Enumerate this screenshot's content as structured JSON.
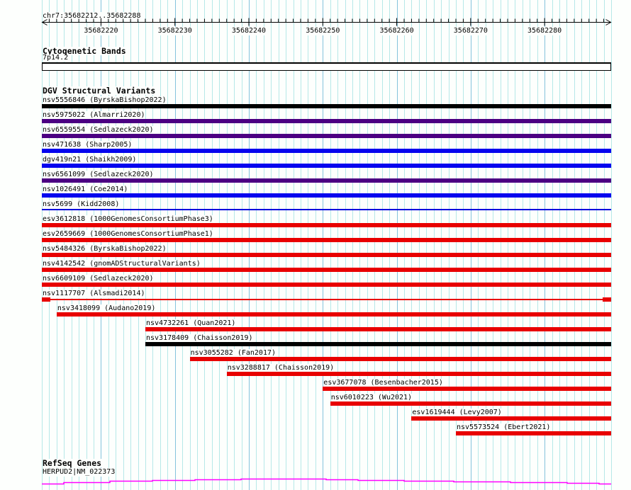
{
  "header": {
    "region": "chr7:35682212..35682288"
  },
  "view": {
    "chrom": "chr7",
    "start": 35682212,
    "end": 35682288
  },
  "ruler": {
    "tick_labels": [
      "35682220",
      "35682230",
      "35682240",
      "35682250",
      "35682260",
      "35682270",
      "35682280"
    ]
  },
  "cytobands": {
    "section_title": "Cytogenetic Bands",
    "band_label": "7p14.2",
    "band_fill": "#FFFFFF"
  },
  "dgv": {
    "section_title": "DGV Structural Variants",
    "variants": [
      {
        "label": "nsv5556846 (ByrskaBishop2022)",
        "color": "#000000",
        "start": 35682212,
        "shape": "bar"
      },
      {
        "label": "nsv5975022 (Almarri2020)",
        "color": "#4B0082",
        "start": 35682212,
        "shape": "bar"
      },
      {
        "label": "nsv6559554 (Sedlazeck2020)",
        "color": "#4B0082",
        "start": 35682212,
        "shape": "bar"
      },
      {
        "label": "nsv471638 (Sharp2005)",
        "color": "#0505EE",
        "start": 35682212,
        "shape": "bar"
      },
      {
        "label": "dgv419n21 (Shaikh2009)",
        "color": "#0505EE",
        "start": 35682212,
        "shape": "bar"
      },
      {
        "label": "nsv6561099 (Sedlazeck2020)",
        "color": "#4B0082",
        "start": 35682212,
        "shape": "bar"
      },
      {
        "label": "nsv1026491 (Coe2014)",
        "color": "#0505EE",
        "start": 35682212,
        "shape": "bar"
      },
      {
        "label": "nsv5699 (Kidd2008)",
        "color": "#0000DD",
        "start": 35682212,
        "shape": "line"
      },
      {
        "label": "esv3612818 (1000GenomesConsortiumPhase3)",
        "color": "#E80000",
        "start": 35682212,
        "shape": "bar"
      },
      {
        "label": "esv2659669 (1000GenomesConsortiumPhase1)",
        "color": "#E80000",
        "start": 35682212,
        "shape": "bar"
      },
      {
        "label": "nsv5484326 (ByrskaBishop2022)",
        "color": "#E80000",
        "start": 35682212,
        "shape": "bar"
      },
      {
        "label": "nsv4142542 (gnomADStructuralVariants)",
        "color": "#E80000",
        "start": 35682212,
        "shape": "bar"
      },
      {
        "label": "nsv6609109 (Sedlazeck2020)",
        "color": "#E80000",
        "start": 35682212,
        "shape": "bar"
      },
      {
        "label": "nsv1117707 (Alsmadi2014)",
        "color": "#E80000",
        "start": 35682212,
        "shape": "line-with-ends"
      },
      {
        "label": "nsv3418099 (Audano2019)",
        "color": "#E80000",
        "start": 35682214,
        "shape": "bar"
      },
      {
        "label": "nsv4732261 (Quan2021)",
        "color": "#E80000",
        "start": 35682226,
        "shape": "bar"
      },
      {
        "label": "nsv3178409 (Chaisson2019)",
        "color": "#000000",
        "start": 35682226,
        "shape": "bar"
      },
      {
        "label": "nsv3055282 (Fan2017)",
        "color": "#E80000",
        "start": 35682232,
        "shape": "bar"
      },
      {
        "label": "nsv3288817 (Chaisson2019)",
        "color": "#E80000",
        "start": 35682237,
        "shape": "bar"
      },
      {
        "label": "esv3677078 (Besenbacher2015)",
        "color": "#E80000",
        "start": 35682250,
        "shape": "bar"
      },
      {
        "label": "nsv6010223 (Wu2021)",
        "color": "#E80000",
        "start": 35682251,
        "shape": "bar"
      },
      {
        "label": "esv1619444 (Levy2007)",
        "color": "#E80000",
        "start": 35682262,
        "shape": "bar"
      },
      {
        "label": "nsv5573524 (Ebert2021)",
        "color": "#E80000",
        "start": 35682268,
        "shape": "bar"
      }
    ]
  },
  "refseq": {
    "section_title": "RefSeq Genes",
    "gene_label": "HERPUD2|NM_022373",
    "line_color": "#FF00FF",
    "intron_arc": {
      "x_breaks": [
        59,
        90,
        155,
        215,
        275,
        340,
        460,
        505,
        570,
        640,
        720,
        800,
        845,
        862
      ],
      "y_levels": [
        683,
        681,
        679,
        678,
        677,
        676,
        677,
        678,
        679,
        680,
        681,
        682,
        683
      ]
    }
  },
  "colors": {
    "grid_light": "#B6E8E8",
    "grid_major": "#85C3DC",
    "axis": "#000000",
    "background": "#FDFFFD"
  }
}
